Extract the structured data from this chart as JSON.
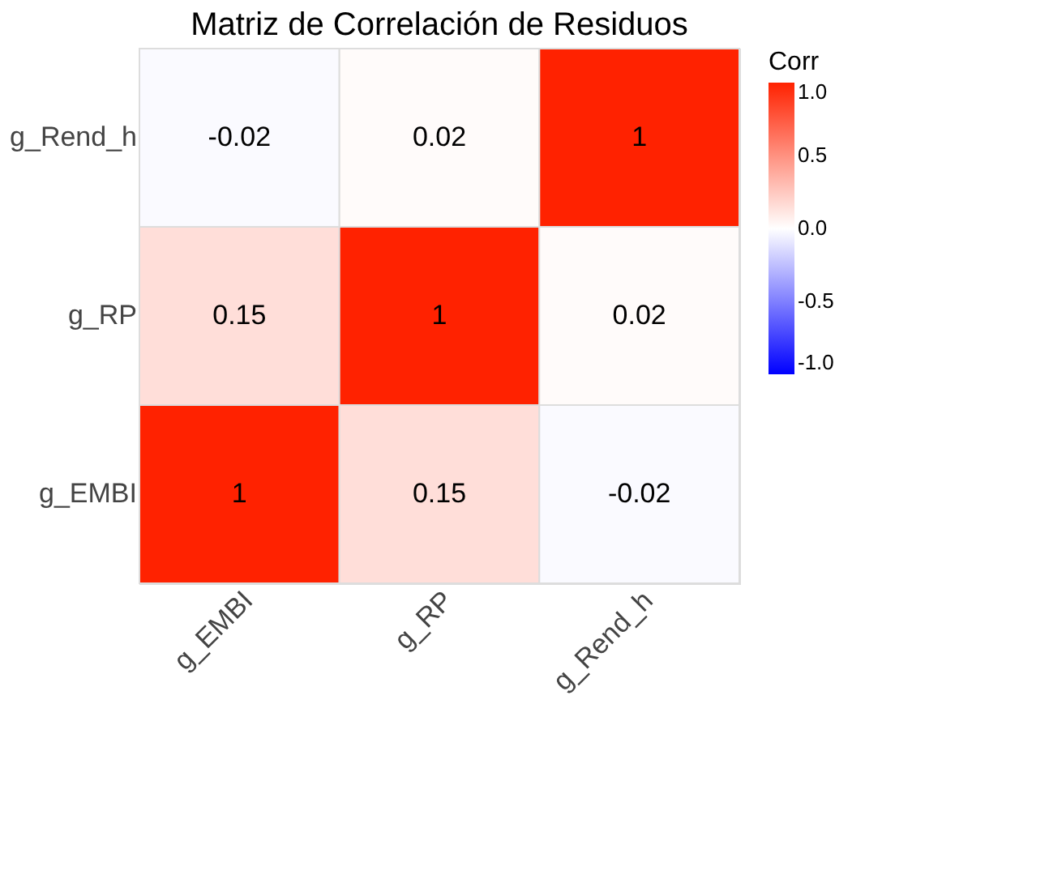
{
  "chart_data": {
    "type": "heatmap",
    "title": "Matriz de Correlación de Residuos",
    "legend_title": "Corr",
    "categories": [
      "g_EMBI",
      "g_RP",
      "g_Rend_h"
    ],
    "y_categories": [
      "g_Rend_h",
      "g_RP",
      "g_EMBI"
    ],
    "cells": [
      [
        -0.02,
        0.02,
        1
      ],
      [
        0.15,
        1,
        0.02
      ],
      [
        1,
        0.15,
        -0.02
      ]
    ],
    "data_labels": true,
    "clim": [
      -1,
      1
    ],
    "cticks": [
      {
        "value": -1,
        "label": "-1.0"
      },
      {
        "value": -0.5,
        "label": "-0.5"
      },
      {
        "value": 0,
        "label": "0.0"
      },
      {
        "value": 0.5,
        "label": "0.5"
      },
      {
        "value": 1,
        "label": "1.0"
      }
    ],
    "colors": [
      "#0000ff",
      "#ffffff",
      "#ff2200"
    ]
  }
}
